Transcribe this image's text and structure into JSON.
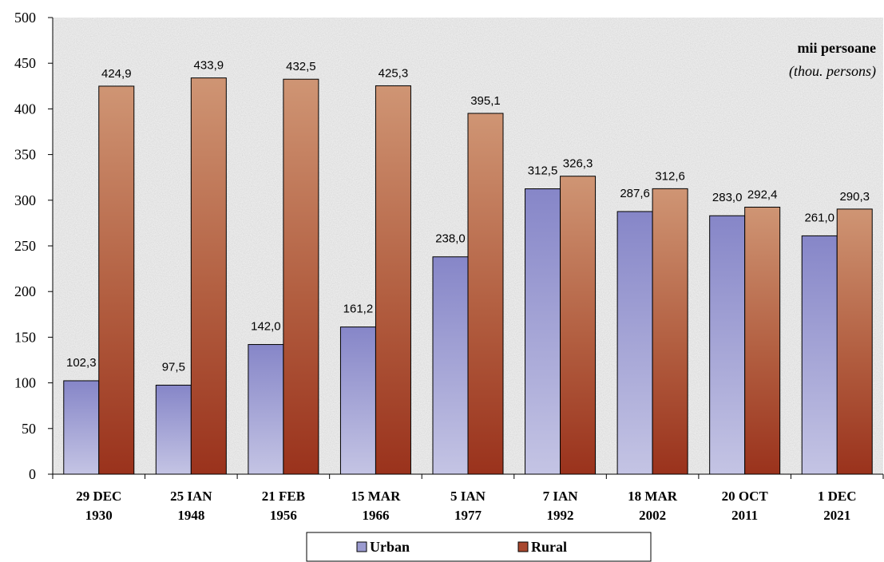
{
  "chart_data": {
    "type": "bar",
    "categories": [
      [
        "29 DEC",
        "1930"
      ],
      [
        "25 IAN",
        "1948"
      ],
      [
        "21 FEB",
        "1956"
      ],
      [
        "15 MAR",
        "1966"
      ],
      [
        "5 IAN",
        "1977"
      ],
      [
        "7 IAN",
        "1992"
      ],
      [
        "18 MAR",
        "2002"
      ],
      [
        "20 OCT",
        "2011"
      ],
      [
        "1 DEC",
        "2021"
      ]
    ],
    "series": [
      {
        "name": "Urban",
        "values": [
          102.3,
          97.5,
          142.0,
          161.2,
          238.0,
          312.5,
          287.6,
          283.0,
          261.0
        ],
        "labels": [
          "102,3",
          "97,5",
          "142,0",
          "161,2",
          "238,0",
          "312,5",
          "287,6",
          "283,0",
          "261,0"
        ],
        "color": "#9b9bd0"
      },
      {
        "name": "Rural",
        "values": [
          424.9,
          433.9,
          432.5,
          425.3,
          395.1,
          326.3,
          312.6,
          292.4,
          290.3
        ],
        "labels": [
          "424,9",
          "433,9",
          "432,5",
          "425,3",
          "395,1",
          "326,3",
          "312,6",
          "292,4",
          "290,3"
        ],
        "color": "#a8472e"
      }
    ],
    "ylim": [
      0,
      500
    ],
    "yticks": [
      0,
      50,
      100,
      150,
      200,
      250,
      300,
      350,
      400,
      450,
      500
    ],
    "unit_label": "mii persoane",
    "unit_label_en": "(thou. persons)",
    "legend_position": "bottom",
    "grid": false
  }
}
